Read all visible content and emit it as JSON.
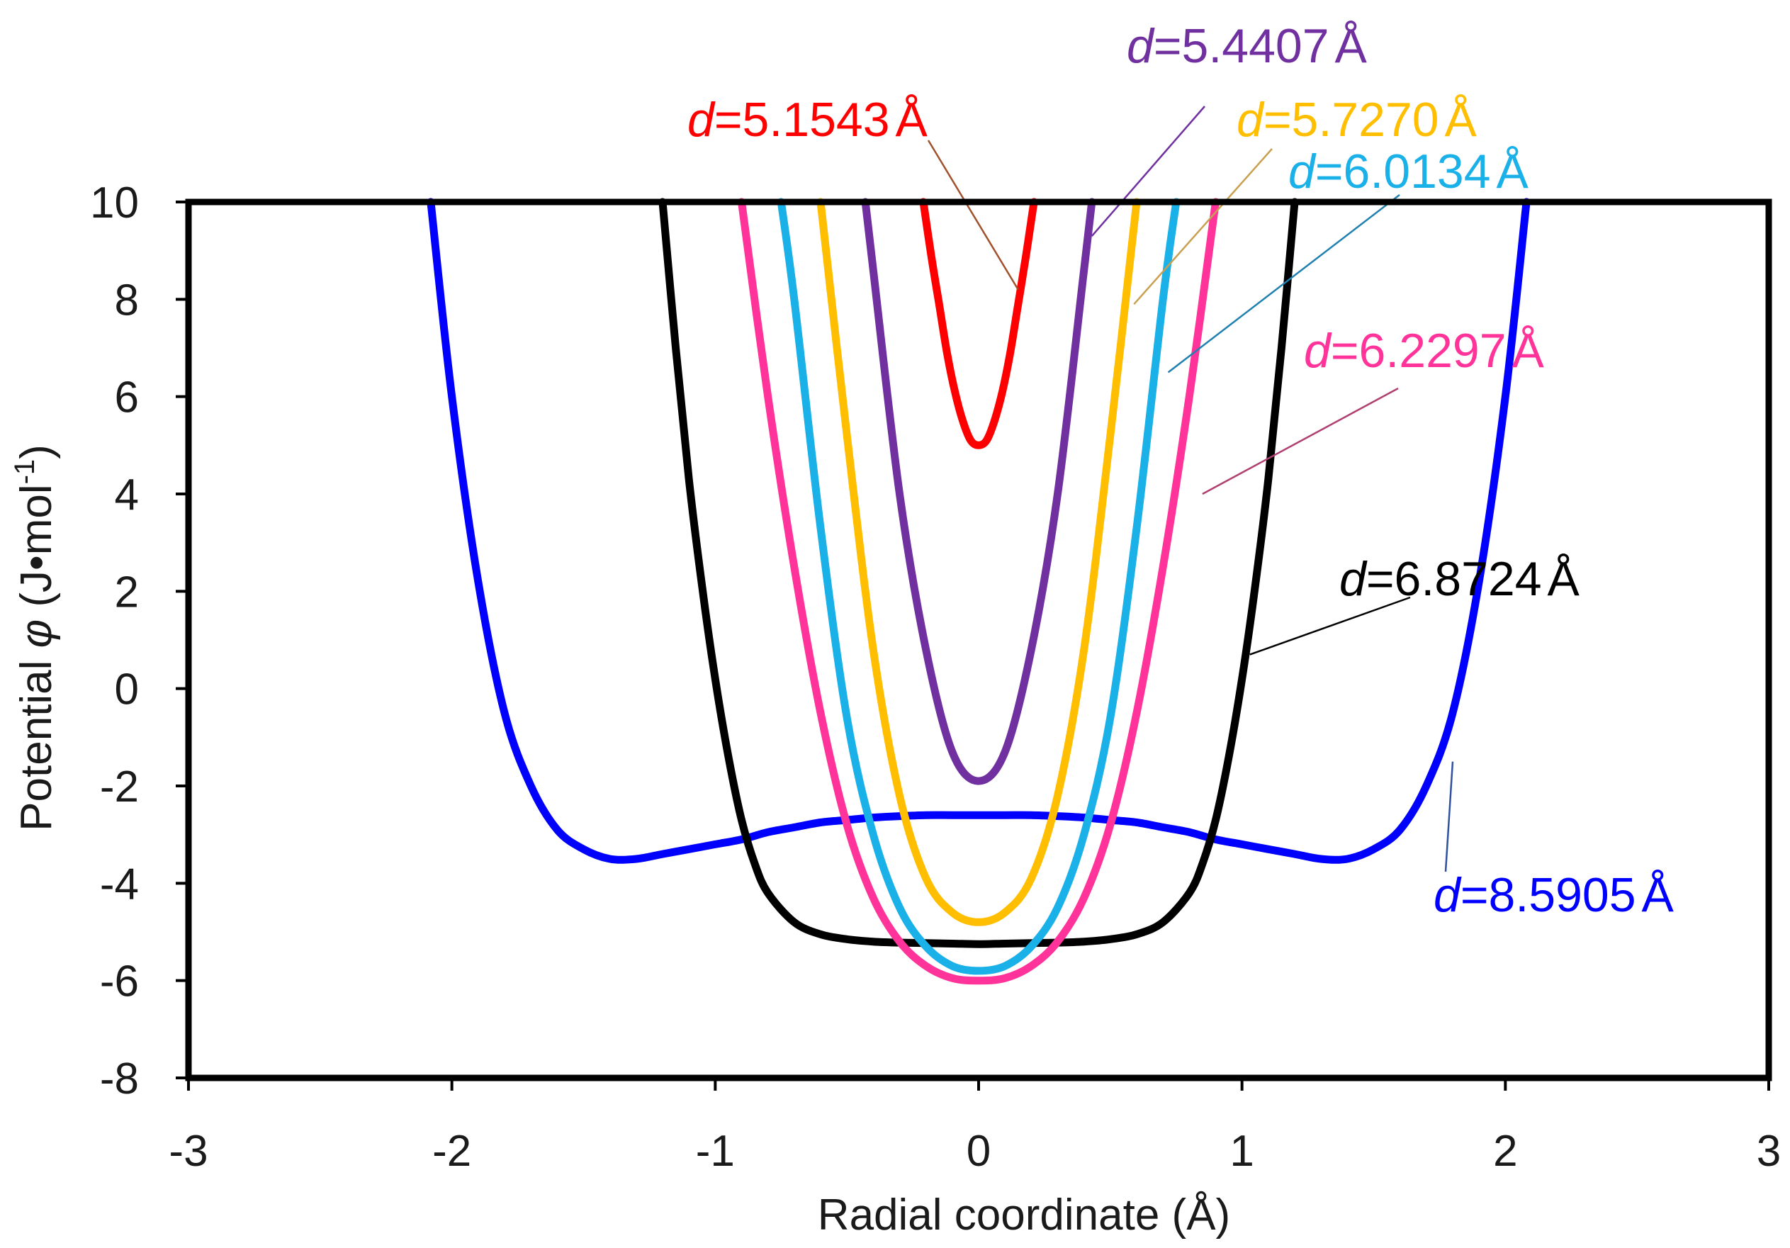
{
  "chart_data": {
    "type": "line",
    "title": "",
    "xlabel": "Radial coordinate (Å)",
    "ylabel_parts": {
      "prefix": "Potential ",
      "symbol": "φ",
      "unit_open": " (J•mol",
      "unit_exp": "-1",
      "unit_close": ")"
    },
    "xlim": [
      -3,
      3
    ],
    "ylim": [
      -8,
      10
    ],
    "xticks": [
      -3,
      -2,
      -1,
      0,
      1,
      2,
      3
    ],
    "yticks": [
      -8,
      -6,
      -4,
      -2,
      0,
      2,
      4,
      6,
      8,
      10
    ],
    "grid": false,
    "legend": "none",
    "series": [
      {
        "name": "d = 8.5905 Å",
        "color": "#0000ff",
        "x": [
          -2.08,
          -2.0,
          -1.9,
          -1.8,
          -1.7,
          -1.6,
          -1.5,
          -1.4,
          -1.3,
          -1.2,
          -1.1,
          -1.0,
          -0.9,
          -0.8,
          -0.7,
          -0.6,
          -0.5,
          -0.4,
          -0.3,
          -0.2,
          -0.1,
          0.0,
          0.1,
          0.2,
          0.3,
          0.4,
          0.5,
          0.6,
          0.7,
          0.8,
          0.9,
          1.0,
          1.1,
          1.2,
          1.3,
          1.4,
          1.5,
          1.6,
          1.7,
          1.8,
          1.9,
          2.0,
          2.08
        ],
        "y": [
          10.0,
          6.0,
          2.2,
          -0.5,
          -2.0,
          -2.9,
          -3.3,
          -3.5,
          -3.5,
          -3.4,
          -3.3,
          -3.2,
          -3.1,
          -2.95,
          -2.85,
          -2.75,
          -2.7,
          -2.65,
          -2.62,
          -2.6,
          -2.6,
          -2.6,
          -2.6,
          -2.6,
          -2.62,
          -2.65,
          -2.7,
          -2.75,
          -2.85,
          -2.95,
          -3.1,
          -3.2,
          -3.3,
          -3.4,
          -3.5,
          -3.5,
          -3.3,
          -2.9,
          -2.0,
          -0.5,
          2.2,
          6.0,
          10.0
        ]
      },
      {
        "name": "d = 6.8724 Å",
        "color": "#000000",
        "x": [
          -1.2,
          -1.15,
          -1.1,
          -1.05,
          -1.0,
          -0.95,
          -0.9,
          -0.85,
          -0.8,
          -0.7,
          -0.6,
          -0.5,
          -0.4,
          -0.3,
          -0.2,
          -0.1,
          0.0,
          0.1,
          0.2,
          0.3,
          0.4,
          0.5,
          0.6,
          0.7,
          0.8,
          0.85,
          0.9,
          0.95,
          1.0,
          1.05,
          1.1,
          1.15,
          1.2
        ],
        "y": [
          10.0,
          7.0,
          4.3,
          2.1,
          0.2,
          -1.4,
          -2.7,
          -3.6,
          -4.2,
          -4.8,
          -5.05,
          -5.15,
          -5.2,
          -5.22,
          -5.23,
          -5.24,
          -5.25,
          -5.24,
          -5.23,
          -5.22,
          -5.2,
          -5.15,
          -5.05,
          -4.8,
          -4.2,
          -3.6,
          -2.7,
          -1.4,
          0.2,
          2.1,
          4.3,
          7.0,
          10.0
        ]
      },
      {
        "name": "d = 6.2297 Å",
        "color": "#ff3399",
        "x": [
          -0.9,
          -0.8,
          -0.7,
          -0.6,
          -0.5,
          -0.4,
          -0.3,
          -0.2,
          -0.1,
          0.0,
          0.1,
          0.2,
          0.3,
          0.4,
          0.5,
          0.6,
          0.7,
          0.8,
          0.9
        ],
        "y": [
          10.0,
          6.0,
          2.5,
          -0.5,
          -2.8,
          -4.3,
          -5.2,
          -5.7,
          -5.95,
          -6.0,
          -5.95,
          -5.7,
          -5.2,
          -4.3,
          -2.8,
          -0.5,
          2.5,
          6.0,
          10.0
        ]
      },
      {
        "name": "d = 6.0134 Å",
        "color": "#1ab0e8",
        "x": [
          -0.75,
          -0.7,
          -0.6,
          -0.5,
          -0.4,
          -0.3,
          -0.2,
          -0.1,
          0.0,
          0.1,
          0.2,
          0.3,
          0.4,
          0.5,
          0.6,
          0.7,
          0.75
        ],
        "y": [
          10.0,
          8.0,
          3.3,
          -0.6,
          -3.0,
          -4.5,
          -5.3,
          -5.7,
          -5.8,
          -5.7,
          -5.3,
          -4.5,
          -3.0,
          -0.6,
          3.3,
          8.0,
          10.0
        ]
      },
      {
        "name": "d = 5.7270 Å",
        "color": "#ffbf00",
        "x": [
          -0.6,
          -0.5,
          -0.4,
          -0.3,
          -0.2,
          -0.1,
          0.0,
          0.1,
          0.2,
          0.3,
          0.4,
          0.5,
          0.6
        ],
        "y": [
          10.0,
          5.2,
          0.8,
          -2.2,
          -3.9,
          -4.6,
          -4.8,
          -4.6,
          -3.9,
          -2.2,
          0.8,
          5.2,
          10.0
        ]
      },
      {
        "name": "d = 5.4407 Å",
        "color": "#7030a0",
        "x": [
          -0.43,
          -0.4,
          -0.3,
          -0.2,
          -0.1,
          0.0,
          0.1,
          0.2,
          0.3,
          0.4,
          0.43
        ],
        "y": [
          10.0,
          8.6,
          4.0,
          0.8,
          -1.3,
          -1.9,
          -1.3,
          0.8,
          4.0,
          8.6,
          10.0
        ]
      },
      {
        "name": "d = 5.1543 Å",
        "color": "#ff0000",
        "x": [
          -0.21,
          -0.18,
          -0.15,
          -0.12,
          -0.09,
          -0.06,
          -0.03,
          0.0,
          0.03,
          0.06,
          0.09,
          0.12,
          0.15,
          0.18,
          0.21
        ],
        "y": [
          10.0,
          8.9,
          7.9,
          6.9,
          6.1,
          5.5,
          5.1,
          5.0,
          5.1,
          5.5,
          6.1,
          6.9,
          7.9,
          8.9,
          10.0
        ]
      }
    ],
    "annotations": [
      {
        "d": "d",
        "eq": "=",
        "value": "5.1543",
        "unit": "Å",
        "color": "#ff0000",
        "leader_color": "#a0522d",
        "point": [
          0.15,
          8.2
        ]
      },
      {
        "d": "d",
        "eq": "=",
        "value": "5.4407",
        "unit": "Å",
        "color": "#7030a0",
        "leader_color": "#7030a0",
        "point": [
          0.43,
          9.3
        ]
      },
      {
        "d": "d",
        "eq": "=",
        "value": "5.7270",
        "unit": "Å",
        "color": "#ffbf00",
        "leader_color": "#c8a050",
        "point": [
          0.59,
          7.9
        ]
      },
      {
        "d": "d",
        "eq": "=",
        "value": "6.0134",
        "unit": "Å",
        "color": "#1ab0e8",
        "leader_color": "#2080b0",
        "point": [
          0.72,
          6.5
        ]
      },
      {
        "d": "d",
        "eq": "=",
        "value": "6.2297",
        "unit": "Å",
        "color": "#ff3399",
        "leader_color": "#b04070",
        "point": [
          0.85,
          4.0
        ]
      },
      {
        "d": "d",
        "eq": "=",
        "value": "6.8724",
        "unit": "Å",
        "color": "#000000",
        "leader_color": "#000000",
        "point": [
          1.03,
          0.7
        ]
      },
      {
        "d": "d",
        "eq": "=",
        "value": "8.5905",
        "unit": "Å",
        "color": "#0000ff",
        "leader_color": "#3050a0",
        "point": [
          1.8,
          -1.5
        ]
      }
    ]
  }
}
